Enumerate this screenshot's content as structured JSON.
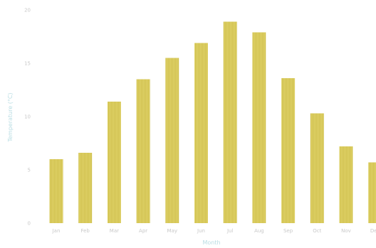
{
  "chart_data": {
    "type": "bar",
    "title": "",
    "xlabel": "Month",
    "ylabel": "Temperature (°C)",
    "categories": [
      "Jan",
      "Feb",
      "Mar",
      "Apr",
      "May",
      "Jun",
      "Jul",
      "Aug",
      "Sep",
      "Oct",
      "Nov",
      "Dec"
    ],
    "values": [
      6.0,
      6.6,
      11.4,
      13.5,
      15.5,
      16.9,
      18.9,
      17.9,
      13.6,
      10.3,
      7.2,
      5.7
    ],
    "ylim": [
      0,
      20
    ],
    "yticks": [
      "0",
      "5",
      "10",
      "15",
      "20"
    ],
    "bar_color": "#e3d56c",
    "bar_stripe_color": "#c8b944",
    "grid": false,
    "legend": "none"
  }
}
